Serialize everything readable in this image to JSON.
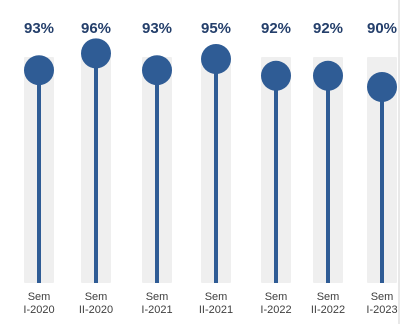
{
  "chart_data": {
    "type": "lollipop",
    "categories": [
      [
        "Sem",
        "I-2020"
      ],
      [
        "Sem",
        "II-2020"
      ],
      [
        "Sem",
        "I-2021"
      ],
      [
        "Sem",
        "II-2021"
      ],
      [
        "Sem",
        "I-2022"
      ],
      [
        "Sem",
        "II-2022"
      ],
      [
        "Sem",
        "I-2023"
      ]
    ],
    "values": [
      93,
      96,
      93,
      95,
      92,
      92,
      90
    ],
    "labels": [
      "93%",
      "96%",
      "93%",
      "95%",
      "92%",
      "92%",
      "90%"
    ],
    "ylim": [
      55,
      100
    ],
    "grid": false,
    "colors": {
      "marker": "#2f5c95",
      "stem": "#2f5c95",
      "track": "#efefef",
      "value_text": "#243f6b",
      "tick_text": "#404040"
    }
  }
}
